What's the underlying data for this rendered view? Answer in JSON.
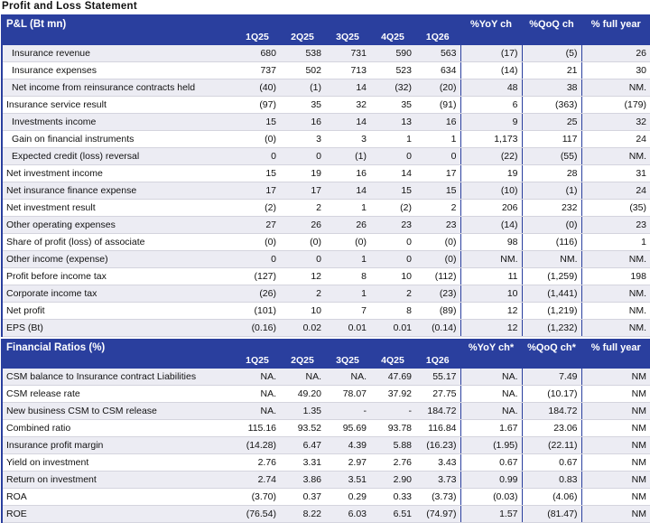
{
  "title": "Profit and Loss Statement",
  "sections": [
    {
      "header": [
        "P&L (Bt mn)",
        "1Q25",
        "2Q25",
        "3Q25",
        "4Q25",
        "1Q26",
        "%YoY ch",
        "%QoQ ch",
        "% full year"
      ],
      "rows": [
        [
          "Insurance revenue",
          "680",
          "538",
          "731",
          "590",
          "563",
          "(17)",
          "(5)",
          "26"
        ],
        [
          "Insurance expenses",
          "737",
          "502",
          "713",
          "523",
          "634",
          "(14)",
          "21",
          "30"
        ],
        [
          "Net income from reinsurance contracts held",
          "(40)",
          "(1)",
          "14",
          "(32)",
          "(20)",
          "48",
          "38",
          "NM."
        ],
        [
          "Insurance service result",
          "(97)",
          "35",
          "32",
          "35",
          "(91)",
          "6",
          "(363)",
          "(179)"
        ],
        [
          "Investments income",
          "15",
          "16",
          "14",
          "13",
          "16",
          "9",
          "25",
          "32"
        ],
        [
          "Gain on financial instruments",
          "(0)",
          "3",
          "3",
          "1",
          "1",
          "1,173",
          "117",
          "24"
        ],
        [
          "Expected credit (loss) reversal",
          "0",
          "0",
          "(1)",
          "0",
          "0",
          "(22)",
          "(55)",
          "NM."
        ],
        [
          "Net investment income",
          "15",
          "19",
          "16",
          "14",
          "17",
          "19",
          "28",
          "31"
        ],
        [
          "Net insurance finance expense",
          "17",
          "17",
          "14",
          "15",
          "15",
          "(10)",
          "(1)",
          "24"
        ],
        [
          "Net investment result",
          "(2)",
          "2",
          "1",
          "(2)",
          "2",
          "206",
          "232",
          "(35)"
        ],
        [
          "Other operating expenses",
          "27",
          "26",
          "26",
          "23",
          "23",
          "(14)",
          "(0)",
          "23"
        ],
        [
          "Share of profit (loss) of associate",
          "(0)",
          "(0)",
          "(0)",
          "0",
          "(0)",
          "98",
          "(116)",
          "1"
        ],
        [
          "Other income (expense)",
          "0",
          "0",
          "1",
          "0",
          "(0)",
          "NM.",
          "NM.",
          "NM."
        ],
        [
          "Profit before income tax",
          "(127)",
          "12",
          "8",
          "10",
          "(112)",
          "11",
          "(1,259)",
          "198"
        ],
        [
          "Corporate income tax",
          "(26)",
          "2",
          "1",
          "2",
          "(23)",
          "10",
          "(1,441)",
          "NM."
        ],
        [
          "Net profit",
          "(101)",
          "10",
          "7",
          "8",
          "(89)",
          "12",
          "(1,219)",
          "NM."
        ],
        [
          "EPS (Bt)",
          "(0.16)",
          "0.02",
          "0.01",
          "0.01",
          "(0.14)",
          "12",
          "(1,232)",
          "NM."
        ]
      ]
    },
    {
      "header": [
        "Financial Ratios (%)",
        "1Q25",
        "2Q25",
        "3Q25",
        "4Q25",
        "1Q26",
        "%YoY ch*",
        "%QoQ ch*",
        "% full year"
      ],
      "rows": [
        [
          "CSM balance to Insurance contract Liabilities",
          "NA.",
          "NA.",
          "NA.",
          "47.69",
          "55.17",
          "NA.",
          "7.49",
          "NM"
        ],
        [
          "CSM release rate",
          "NA.",
          "49.20",
          "78.07",
          "37.92",
          "27.75",
          "NA.",
          "(10.17)",
          "NM"
        ],
        [
          "New business CSM to CSM release",
          "NA.",
          "1.35",
          "-",
          "-",
          "184.72",
          "NA.",
          "184.72",
          "NM"
        ],
        [
          "Combined ratio",
          "115.16",
          "93.52",
          "95.69",
          "93.78",
          "116.84",
          "1.67",
          "23.06",
          "NM"
        ],
        [
          "Insurance profit margin",
          "(14.28)",
          "6.47",
          "4.39",
          "5.88",
          "(16.23)",
          "(1.95)",
          "(22.11)",
          "NM"
        ],
        [
          "Yield on investment",
          "2.76",
          "3.31",
          "2.97",
          "2.76",
          "3.43",
          "0.67",
          "0.67",
          "NM"
        ],
        [
          "Return on investment",
          "2.74",
          "3.86",
          "3.51",
          "2.90",
          "3.73",
          "0.99",
          "0.83",
          "NM"
        ],
        [
          "ROA",
          "(3.70)",
          "0.37",
          "0.29",
          "0.33",
          "(3.73)",
          "(0.03)",
          "(4.06)",
          "NM"
        ],
        [
          "ROE",
          "(76.54)",
          "8.22",
          "6.03",
          "6.51",
          "(74.97)",
          "1.57",
          "(81.47)",
          "NM"
        ]
      ]
    }
  ]
}
